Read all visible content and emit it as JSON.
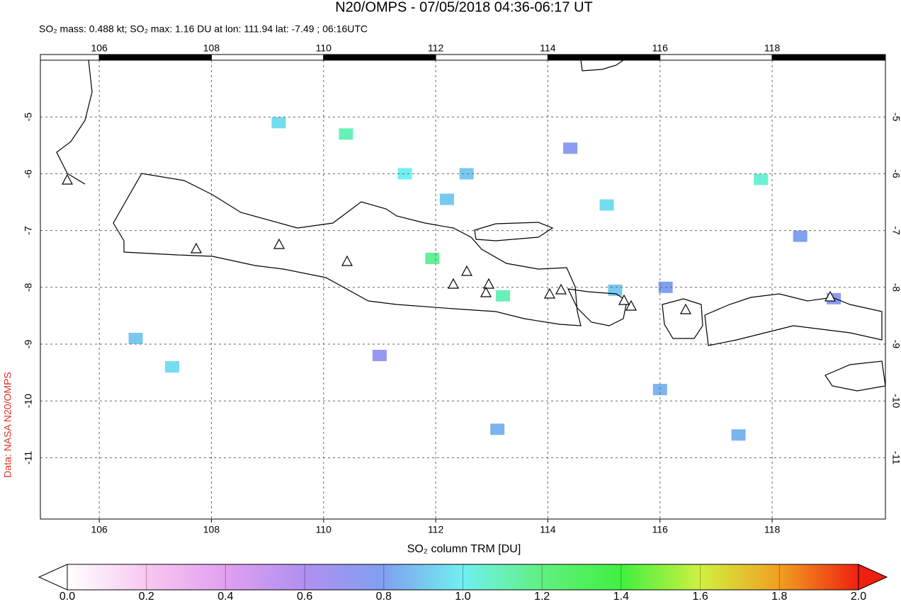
{
  "chart_data": {
    "type": "map",
    "title": "N20/OMPS - 07/05/2018 04:36-06:17 UT",
    "subtitle": "SO₂ mass: 0.488 kt; SO₂ max: 1.16 DU at lon: 111.94 lat: -7.49 ; 06:16UTC",
    "credit": "Data: NASA N20/OMPS",
    "xlim": [
      104.95,
      120.02
    ],
    "ylim": [
      -12.08,
      -4.0
    ],
    "xticks": [
      106,
      108,
      110,
      112,
      114,
      116,
      118
    ],
    "yticks": [
      -5,
      -6,
      -7,
      -8,
      -9,
      -10,
      -11
    ],
    "grid": true,
    "pixels": {
      "lon": [
        111.94,
        110.4,
        111.45,
        112.55,
        113.2,
        115.05,
        117.8,
        116.0,
        115.2,
        113.1,
        106.65,
        107.3,
        109.2,
        118.5,
        116.1,
        111.0,
        114.4,
        112.2,
        119.1,
        117.4
      ],
      "lat": [
        -7.49,
        -5.3,
        -6.0,
        -6.0,
        -8.15,
        -6.55,
        -6.1,
        -9.8,
        -8.05,
        -10.5,
        -8.9,
        -9.4,
        -5.1,
        -7.1,
        -8.0,
        -9.2,
        -5.55,
        -6.45,
        -8.2,
        -10.6
      ],
      "values": [
        1.16,
        1.1,
        1.0,
        0.9,
        1.1,
        0.95,
        1.05,
        0.85,
        0.9,
        0.85,
        0.9,
        0.95,
        0.95,
        0.8,
        0.8,
        0.7,
        0.75,
        0.9,
        0.75,
        0.85
      ]
    },
    "colorbar": {
      "label": "SO₂ column TRM [DU]",
      "clim": [
        0,
        2
      ],
      "colors": [
        "#ffffff",
        "#f8c8f0",
        "#e0a0f0",
        "#b090f0",
        "#80a0f0",
        "#70f0f0",
        "#60f080",
        "#40f040",
        "#d0f040",
        "#f0a020",
        "#f02010"
      ],
      "ticks": [
        {
          "value": 0,
          "label": "0.0"
        },
        {
          "value": 0.2,
          "label": "0.2"
        },
        {
          "value": 0.4,
          "label": "0.4"
        },
        {
          "value": 0.6,
          "label": "0.6"
        },
        {
          "value": 0.8,
          "label": "0.8"
        },
        {
          "value": 1,
          "label": "1.0"
        },
        {
          "value": 1.2,
          "label": "1.2"
        },
        {
          "value": 1.4,
          "label": "1.4"
        },
        {
          "value": 1.6,
          "label": "1.6"
        },
        {
          "value": 1.8,
          "label": "1.8"
        },
        {
          "value": 2,
          "label": "2.0"
        }
      ]
    }
  }
}
